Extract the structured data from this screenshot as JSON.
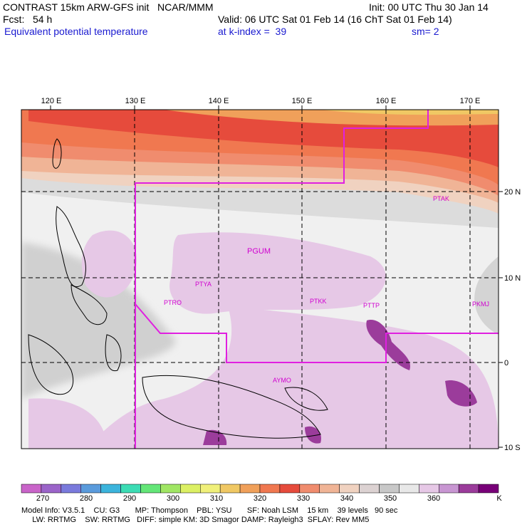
{
  "header": {
    "line1_left": "CONTRAST 15km ARW-GFS init   NCAR/MMM",
    "line1_right": "Init: 00 UTC Thu 30 Jan 14",
    "line2_left": "Fcst:   54 h",
    "line2_right": "Valid: 06 UTC Sat 01 Feb 14 (16 ChT Sat 01 Feb 14)",
    "line3_left": "Equivalent potential temperature",
    "line3_mid": "at k-index =  39",
    "line3_right": "sm= 2"
  },
  "map": {
    "lon_labels": [
      "120 E",
      "130 E",
      "140 E",
      "150 E",
      "160 E",
      "170 E"
    ],
    "lat_labels": [
      "20 N",
      "10 N",
      "0",
      "10 S"
    ],
    "stations": [
      "PTAK",
      "PGUM",
      "PTYA",
      "PTRO",
      "PTKK",
      "PTTP",
      "PKMJ",
      "AYMO"
    ]
  },
  "colorbar": {
    "colors": [
      "#c964c9",
      "#9b64c9",
      "#7a7adc",
      "#5a9bdc",
      "#3cb4dc",
      "#3cdcb4",
      "#64e678",
      "#a0e664",
      "#dcf064",
      "#f0f07a",
      "#f0c864",
      "#f0a05a",
      "#f07850",
      "#e64b3c",
      "#f08c6e",
      "#f0b496",
      "#f0d2c0",
      "#dcd2d2",
      "#c8c8c8",
      "#e8e8e8",
      "#e6c8e6",
      "#c896d2",
      "#9b3c9b",
      "#780078"
    ],
    "labels": [
      "270",
      "280",
      "290",
      "300",
      "310",
      "320",
      "330",
      "340",
      "350",
      "360",
      "K"
    ]
  },
  "footer": {
    "line1": "Model Info: V3.5.1    CU: G3       MP: Thompson    PBL: YSU       SF: Noah LSM    15 km    39 levels   90 sec",
    "line2": "     LW: RRTMG    SW: RRTMG   DIFF: simple KM: 3D Smagor DAMP: Rayleigh3  SFLAY: Rev MM5"
  }
}
